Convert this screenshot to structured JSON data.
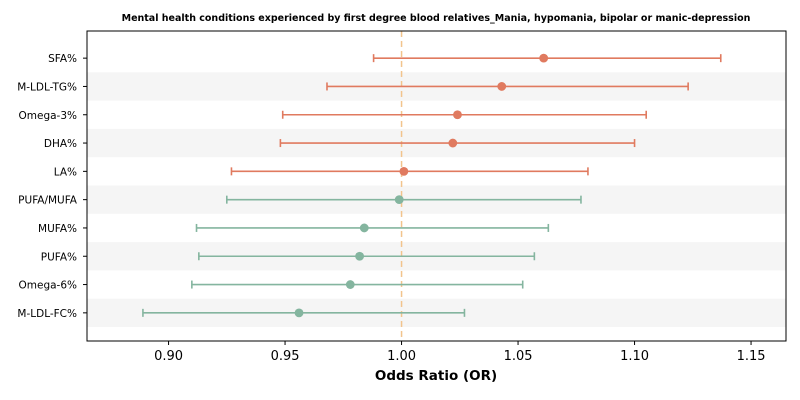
{
  "chart_data": {
    "type": "forest",
    "title": "Mental health conditions experienced by first degree blood relatives_Mania, hypomania, bipolar or manic-depression",
    "xlabel": "Odds Ratio (OR)",
    "xlim": [
      0.865,
      1.165
    ],
    "xticks": [
      "0.90",
      "0.95",
      "1.00",
      "1.05",
      "1.10",
      "1.15"
    ],
    "xtick_values": [
      0.9,
      0.95,
      1.0,
      1.05,
      1.1,
      1.15
    ],
    "reference_line": 1.0,
    "grid": false,
    "row_shading": "alternating",
    "colors": {
      "positive": "#e07a5f",
      "negative": "#84b59f",
      "reference": "#f2c48d",
      "row_band": "#f5f5f5"
    },
    "rows": [
      {
        "label": "SFA%",
        "or": 1.061,
        "lo": 0.988,
        "hi": 1.137
      },
      {
        "label": "M-LDL-TG%",
        "or": 1.043,
        "lo": 0.968,
        "hi": 1.123
      },
      {
        "label": "Omega-3%",
        "or": 1.024,
        "lo": 0.949,
        "hi": 1.105
      },
      {
        "label": "DHA%",
        "or": 1.022,
        "lo": 0.948,
        "hi": 1.1
      },
      {
        "label": "LA%",
        "or": 1.001,
        "lo": 0.927,
        "hi": 1.08
      },
      {
        "label": "PUFA/MUFA",
        "or": 0.999,
        "lo": 0.925,
        "hi": 1.077
      },
      {
        "label": "MUFA%",
        "or": 0.984,
        "lo": 0.912,
        "hi": 1.063
      },
      {
        "label": "PUFA%",
        "or": 0.982,
        "lo": 0.913,
        "hi": 1.057
      },
      {
        "label": "Omega-6%",
        "or": 0.978,
        "lo": 0.91,
        "hi": 1.052
      },
      {
        "label": "M-LDL-FC%",
        "or": 0.956,
        "lo": 0.889,
        "hi": 1.027
      }
    ]
  }
}
